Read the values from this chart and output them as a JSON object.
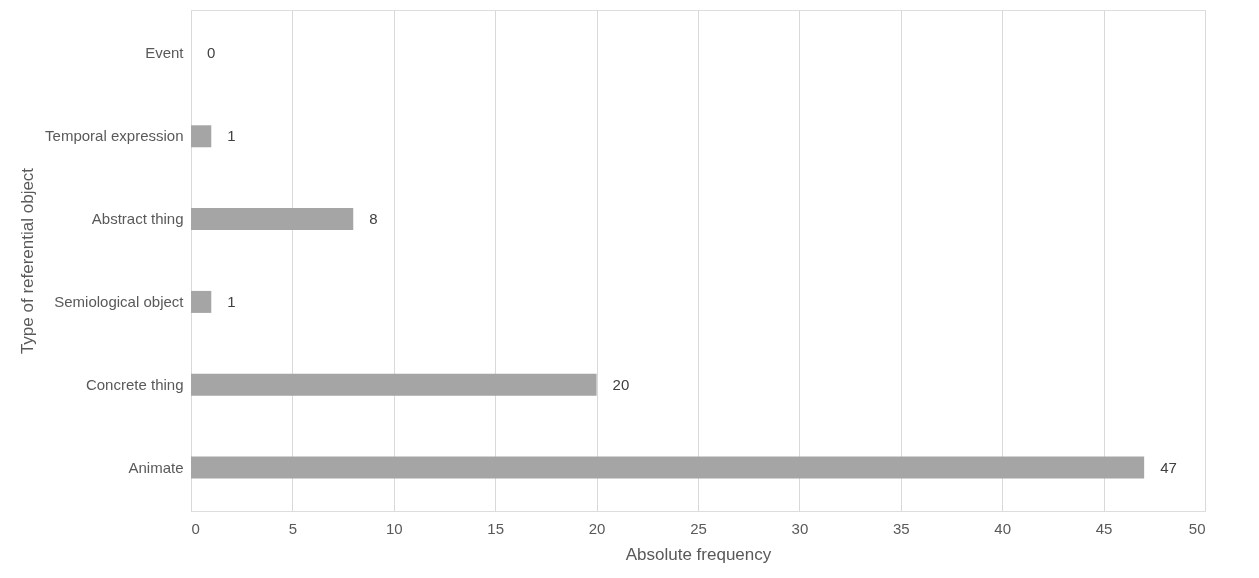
{
  "chart_data": {
    "type": "bar",
    "orientation": "horizontal",
    "xlabel": "Absolute frequency",
    "ylabel": "Type of referential object",
    "categories": [
      "Event",
      "Temporal expression",
      "Abstract thing",
      "Semiological object",
      "Concrete thing",
      "Animate"
    ],
    "values": [
      0,
      1,
      8,
      1,
      20,
      47
    ],
    "color": "#a5a5a5",
    "xlim": [
      0,
      50
    ],
    "xticks": [
      0,
      5,
      10,
      15,
      20,
      25,
      30,
      35,
      40,
      45,
      50
    ],
    "grid": "x",
    "data_labels": true
  }
}
